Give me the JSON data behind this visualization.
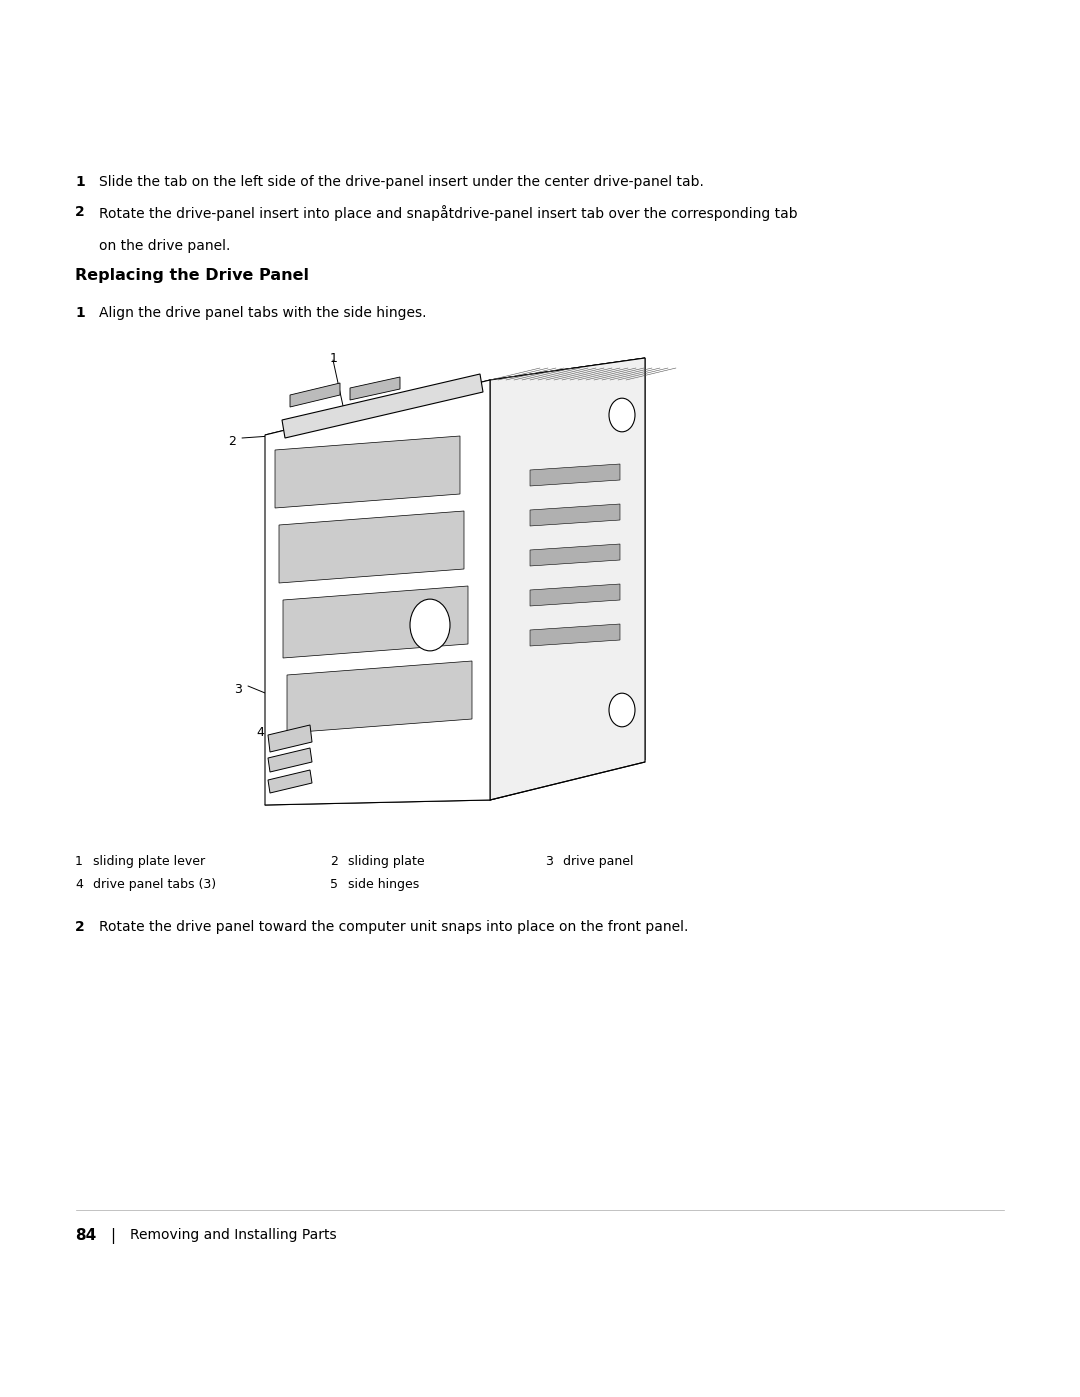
{
  "background_color": "#ffffff",
  "page_width": 10.8,
  "page_height": 13.97,
  "text_color": "#000000",
  "step1_text": "Slide the tab on the left side of the drive-panel insert under the center drive-panel tab.",
  "step2_text_line1": "Rotate the drive-panel insert into place and snapåtdrive-panel insert tab over the corresponding tab",
  "step2_text_line2": "on the drive panel.",
  "section_title": "Replacing the Drive Panel",
  "sub_step1_text": "Align the drive panel tabs with the side hinges.",
  "legend_line1": [
    {
      "num": "1",
      "label": "sliding plate lever"
    },
    {
      "num": "2",
      "label": "sliding plate"
    },
    {
      "num": "3",
      "label": "drive panel"
    }
  ],
  "legend_line2": [
    {
      "num": "4",
      "label": "drive panel tabs (3)"
    },
    {
      "num": "5",
      "label": "side hinges"
    }
  ],
  "step2_final_text": "Rotate the drive panel toward the computer unit snaps into place on the front panel.",
  "footer_page": "84",
  "footer_text": "Removing and Installing Parts"
}
